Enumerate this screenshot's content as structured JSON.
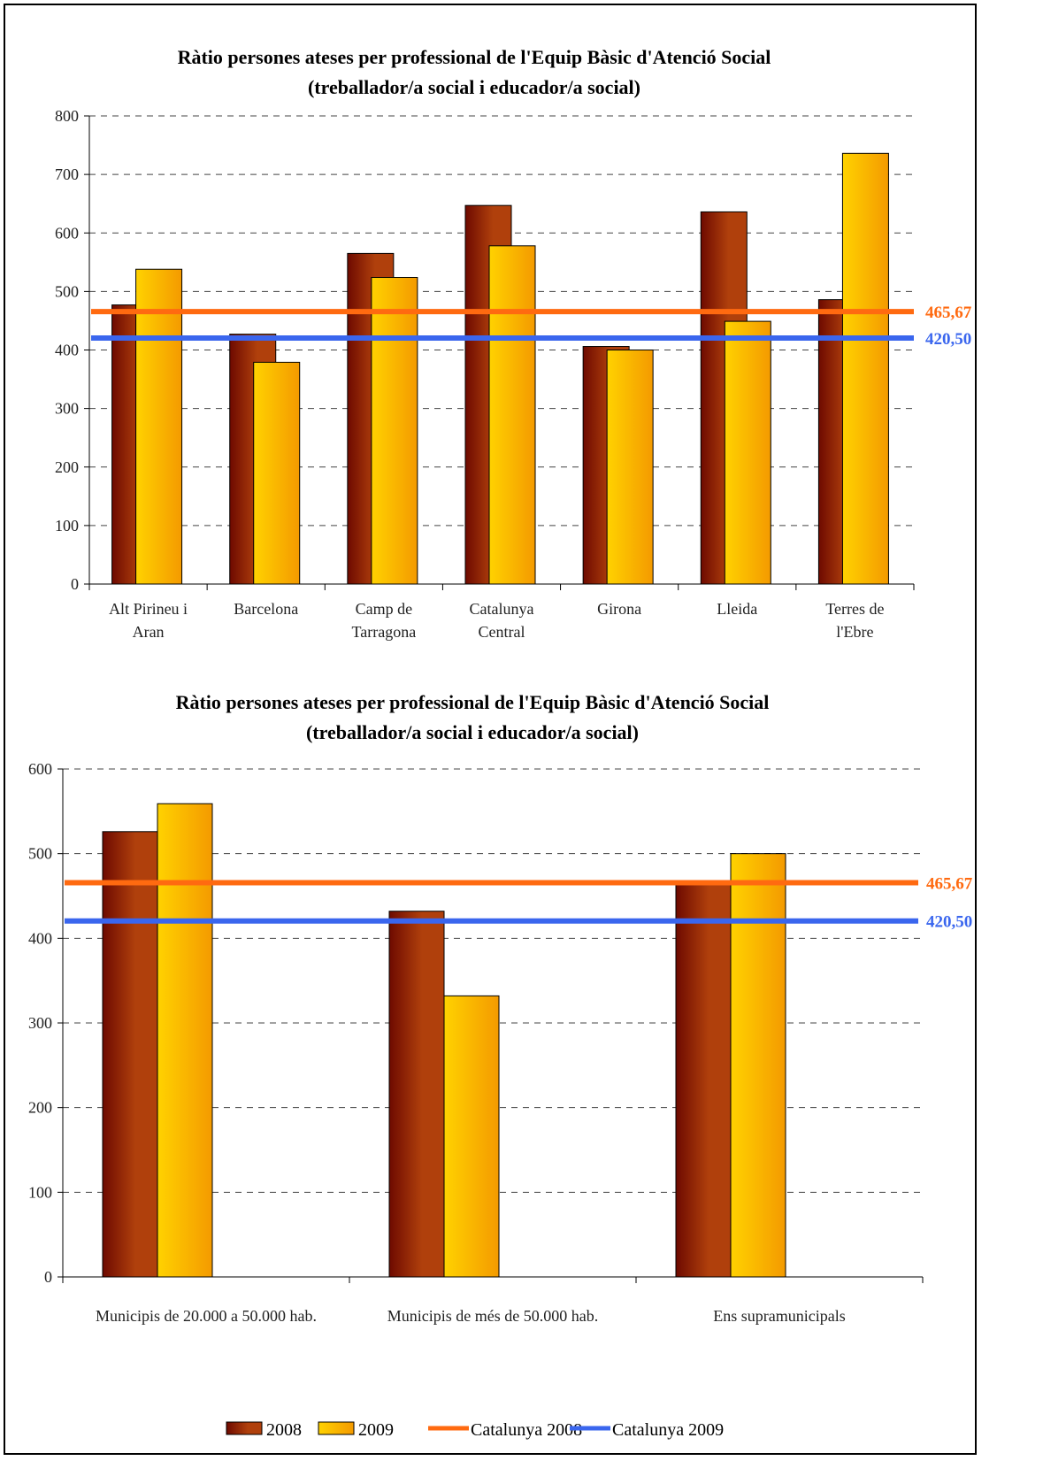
{
  "colors": {
    "bar2008_dark": "#6e0a00",
    "bar2008_light": "#b0400c",
    "bar2009_light": "#ffd200",
    "bar2009_dark": "#f49a00",
    "line2008": "#ff6a10",
    "line2009": "#3a66ee"
  },
  "legend": {
    "items": [
      {
        "label": "2008",
        "kind": "bar2008"
      },
      {
        "label": "2009",
        "kind": "bar2009"
      },
      {
        "label": "Catalunya 2008",
        "kind": "line2008"
      },
      {
        "label": "Catalunya 2009",
        "kind": "line2009"
      }
    ]
  },
  "chart_data": [
    {
      "type": "bar",
      "title": [
        "Ràtio persones ateses per professional de l'Equip Bàsic d'Atenció Social",
        "(treballador/a social i educador/a social)"
      ],
      "categories": [
        [
          "Alt Pirineu i",
          "Aran"
        ],
        [
          "Barcelona"
        ],
        [
          "Camp de",
          "Tarragona"
        ],
        [
          "Catalunya",
          "Central"
        ],
        [
          "Girona"
        ],
        [
          "Lleida"
        ],
        [
          "Terres de",
          "l'Ebre"
        ]
      ],
      "series": [
        {
          "name": "2008",
          "values": [
            477,
            427,
            565,
            647,
            406,
            636,
            486
          ]
        },
        {
          "name": "2009",
          "values": [
            538,
            379,
            524,
            578,
            400,
            449,
            736
          ]
        }
      ],
      "reference_lines": [
        {
          "name": "Catalunya 2008",
          "value": 465.67,
          "label": "465,67"
        },
        {
          "name": "Catalunya 2009",
          "value": 420.5,
          "label": "420,50"
        }
      ],
      "ylim": [
        0,
        800
      ],
      "yticks": [
        0,
        100,
        200,
        300,
        400,
        500,
        600,
        700,
        800
      ],
      "grid": true
    },
    {
      "type": "bar",
      "title": [
        "Ràtio persones ateses per professional de l'Equip Bàsic d'Atenció Social",
        "(treballador/a social i educador/a social)"
      ],
      "categories": [
        [
          "Municipis de 20.000 a 50.000 hab."
        ],
        [
          "Municipis de més de 50.000 hab."
        ],
        [
          "Ens supramunicipals"
        ]
      ],
      "series": [
        {
          "name": "2008",
          "values": [
            526,
            432,
            468
          ]
        },
        {
          "name": "2009",
          "values": [
            559,
            332,
            500
          ]
        }
      ],
      "reference_lines": [
        {
          "name": "Catalunya 2008",
          "value": 465.67,
          "label": "465,67"
        },
        {
          "name": "Catalunya 2009",
          "value": 420.5,
          "label": "420,50"
        }
      ],
      "ylim": [
        0,
        600
      ],
      "yticks": [
        0,
        100,
        200,
        300,
        400,
        500,
        600
      ],
      "grid": true,
      "legend_position": "bottom"
    }
  ]
}
